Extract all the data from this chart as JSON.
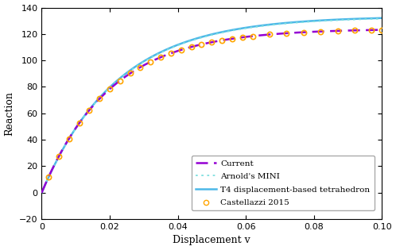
{
  "title": "",
  "xlabel": "Displacement v",
  "ylabel": "Reaction",
  "xlim": [
    0,
    0.1
  ],
  "ylim": [
    -20,
    140
  ],
  "xticks": [
    0,
    0.02,
    0.04,
    0.06,
    0.08,
    0.1
  ],
  "yticks": [
    -20,
    0,
    20,
    40,
    60,
    80,
    100,
    120,
    140
  ],
  "figsize": [
    4.98,
    3.15
  ],
  "dpi": 100,
  "legend_labels": [
    "Current",
    "Arnold's MINI",
    "T4 displacement-based tetrahedron",
    "Castellazzi 2015"
  ],
  "colors": {
    "current": "#9400D3",
    "mini": "#7FDFDF",
    "t4": "#4DB8E8",
    "castellazzi": "#FFA500"
  },
  "background_color": "#ffffff",
  "t4_plateau": 133.5,
  "t4_rate": 0.022,
  "mini_plateau": 133.0,
  "mini_rate": 0.022,
  "current_plateau": 124.0,
  "current_rate": 0.022,
  "castellazzi_x": [
    0.002,
    0.005,
    0.008,
    0.011,
    0.014,
    0.017,
    0.02,
    0.023,
    0.026,
    0.029,
    0.032,
    0.035,
    0.038,
    0.041,
    0.044,
    0.047,
    0.05,
    0.053,
    0.056,
    0.059,
    0.062,
    0.067,
    0.072,
    0.077,
    0.082,
    0.087,
    0.092,
    0.097,
    0.1
  ]
}
